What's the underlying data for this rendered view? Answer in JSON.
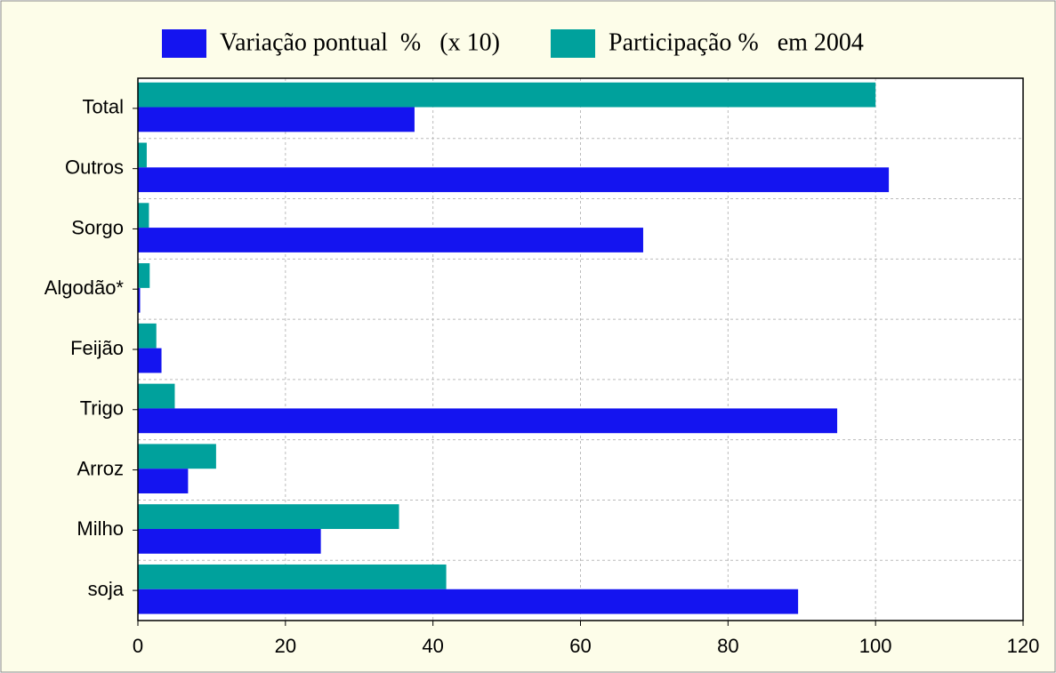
{
  "chart_data": {
    "type": "barh",
    "categories": [
      "Total",
      "Outros",
      "Sorgo",
      "Algodão*",
      "Feijão",
      "Trigo",
      "Arroz",
      "Milho",
      "soja"
    ],
    "series": [
      {
        "name": "Variação pontual  %   (x 10)",
        "color": "#1414f0",
        "values": [
          37.5,
          101.8,
          68.5,
          0.3,
          3.2,
          94.8,
          6.8,
          24.8,
          89.5
        ]
      },
      {
        "name": "Participação %   em 2004",
        "color": "#00a19c",
        "values": [
          100,
          1.2,
          1.5,
          1.6,
          2.5,
          5.0,
          10.6,
          35.4,
          41.8
        ]
      }
    ],
    "xlim": [
      0,
      120
    ],
    "xticks": [
      0,
      20,
      40,
      60,
      80,
      100,
      120
    ],
    "grid": true,
    "legend": "top"
  }
}
